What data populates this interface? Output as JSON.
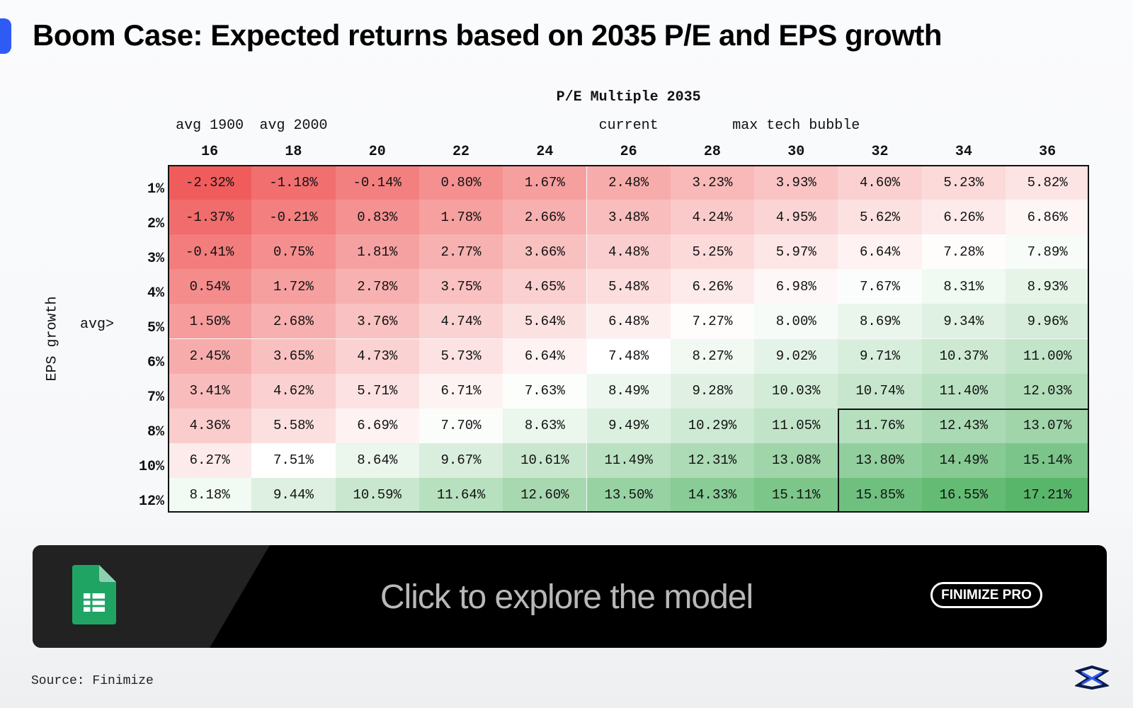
{
  "header": {
    "title": "Boom Case: Expected returns based on 2035 P/E and EPS growth"
  },
  "table": {
    "axis_title": "P/E Multiple 2035",
    "column_notes": [
      "avg 1900",
      "avg 2000",
      null,
      null,
      null,
      "current",
      null,
      "max tech bubble",
      null,
      null,
      null
    ],
    "columns": [
      16,
      18,
      20,
      22,
      24,
      26,
      28,
      30,
      32,
      34,
      36
    ],
    "row_axis_title": "EPS growth",
    "row_notes": [
      null,
      null,
      null,
      null,
      "avg>",
      null,
      null,
      null,
      null,
      null
    ],
    "row_labels": [
      "1%",
      "2%",
      "3%",
      "4%",
      "5%",
      "6%",
      "7%",
      "8%",
      "10%",
      "12%"
    ],
    "rows": [
      [
        "-2.32%",
        "-1.18%",
        "-0.14%",
        "0.80%",
        "1.67%",
        "2.48%",
        "3.23%",
        "3.93%",
        "4.60%",
        "5.23%",
        "5.82%"
      ],
      [
        "-1.37%",
        "-0.21%",
        "0.83%",
        "1.78%",
        "2.66%",
        "3.48%",
        "4.24%",
        "4.95%",
        "5.62%",
        "6.26%",
        "6.86%"
      ],
      [
        "-0.41%",
        "0.75%",
        "1.81%",
        "2.77%",
        "3.66%",
        "4.48%",
        "5.25%",
        "5.97%",
        "6.64%",
        "7.28%",
        "7.89%"
      ],
      [
        "0.54%",
        "1.72%",
        "2.78%",
        "3.75%",
        "4.65%",
        "5.48%",
        "6.26%",
        "6.98%",
        "7.67%",
        "8.31%",
        "8.93%"
      ],
      [
        "1.50%",
        "2.68%",
        "3.76%",
        "4.74%",
        "5.64%",
        "6.48%",
        "7.27%",
        "8.00%",
        "8.69%",
        "9.34%",
        "9.96%"
      ],
      [
        "2.45%",
        "3.65%",
        "4.73%",
        "5.73%",
        "6.64%",
        "7.48%",
        "8.27%",
        "9.02%",
        "9.71%",
        "10.37%",
        "11.00%"
      ],
      [
        "3.41%",
        "4.62%",
        "5.71%",
        "6.71%",
        "7.63%",
        "8.49%",
        "9.28%",
        "10.03%",
        "10.74%",
        "11.40%",
        "12.03%"
      ],
      [
        "4.36%",
        "5.58%",
        "6.69%",
        "7.70%",
        "8.63%",
        "9.49%",
        "10.29%",
        "11.05%",
        "11.76%",
        "12.43%",
        "13.07%"
      ],
      [
        "6.27%",
        "7.51%",
        "8.64%",
        "9.67%",
        "10.61%",
        "11.49%",
        "12.31%",
        "13.08%",
        "13.80%",
        "14.49%",
        "15.14%"
      ],
      [
        "8.18%",
        "9.44%",
        "10.59%",
        "11.64%",
        "12.60%",
        "13.50%",
        "14.33%",
        "15.11%",
        "15.85%",
        "16.55%",
        "17.21%"
      ]
    ]
  },
  "banner": {
    "cta": "Click to explore the model",
    "badge": "FINIMIZE PRO"
  },
  "footer": {
    "source": "Source: Finimize"
  }
}
